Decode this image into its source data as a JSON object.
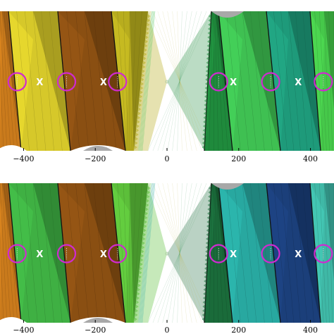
{
  "chart_data": [
    {
      "type": "area",
      "xlim": [
        -450,
        450
      ],
      "x_ticks": [
        -400,
        -200,
        0,
        200,
        400
      ],
      "x_tick_labels": [
        "−400",
        "−200",
        "0",
        "200",
        "400"
      ],
      "circle_x": [
        -418,
        -280,
        -138,
        144,
        289,
        436
      ],
      "x_marker_x": [
        -355,
        -177,
        185,
        366
      ],
      "x_marker_label": "X",
      "band_colors": [
        "#c97a1c",
        "#d6c82a",
        "#8a4f12",
        "#b8ad1e",
        "#1f8a3c",
        "#3fc052",
        "#1e9a7a",
        "#46c84a"
      ]
    },
    {
      "type": "area",
      "xlim": [
        -450,
        450
      ],
      "x_ticks": [
        -400,
        -200,
        0,
        200,
        400
      ],
      "x_tick_labels": [
        "−400",
        "−200",
        "0",
        "200",
        "400"
      ],
      "circle_x": [
        -418,
        -280,
        -138,
        144,
        289,
        436
      ],
      "x_marker_x": [
        -355,
        -177,
        185,
        366
      ],
      "x_marker_label": "X",
      "band_colors": [
        "#c97a1c",
        "#3fb043",
        "#8a4f12",
        "#5cbf3a",
        "#1a6b3a",
        "#28a8a0",
        "#1b3f7a",
        "#3fb8a6"
      ]
    }
  ],
  "colors": {
    "circle": "#d02ad0",
    "background": "#ffffff",
    "cap": "#a8a8a8"
  }
}
